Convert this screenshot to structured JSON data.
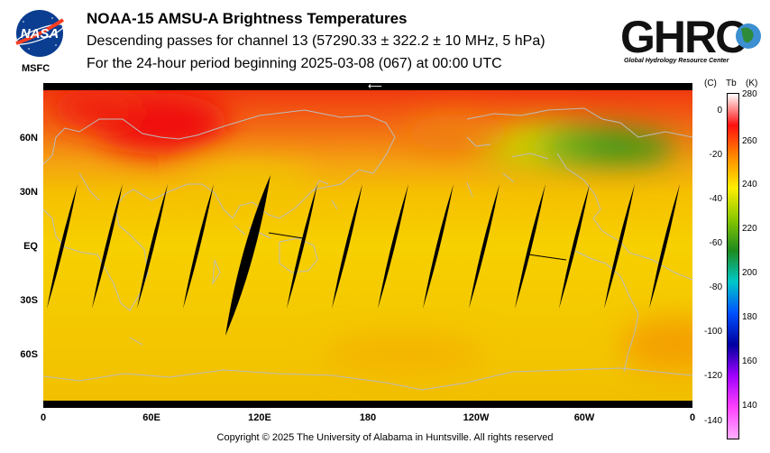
{
  "header": {
    "title": "NOAA-15 AMSU-A Brightness Temperatures",
    "line2": "Descending passes for channel 13 (57290.33 ± 322.2 ± 10 MHz, 5 hPa)",
    "line3": "For the 24-hour period beginning 2025-03-08 (067) at 00:00 UTC"
  },
  "logos": {
    "nasa_text": "NASA",
    "msfc_label": "MSFC",
    "ghrc_text": "GHRC",
    "ghrc_subtitle": "Global Hydrology Resource Center"
  },
  "map": {
    "projection": "equirectangular",
    "lat_labels": [
      "60N",
      "30N",
      "EQ",
      "30S",
      "60S"
    ],
    "lon_labels": [
      "0",
      "60E",
      "120E",
      "180",
      "120W",
      "60W",
      "0"
    ],
    "arrow": "⟵",
    "colors": {
      "ocean_base": "#f6cc00",
      "warm": "#f01414",
      "cool": "#2f9a12",
      "gap": "#000000",
      "coast": "#b8b8b8"
    }
  },
  "colorbar": {
    "celsius_unit": "(C)",
    "tb_label": "Tb",
    "kelvin_unit": "(K)",
    "celsius_ticks": [
      "0",
      "-20",
      "-40",
      "-60",
      "-80",
      "-100",
      "-120",
      "-140"
    ],
    "kelvin_ticks": [
      "280",
      "260",
      "240",
      "220",
      "200",
      "180",
      "160",
      "140"
    ],
    "range_k": [
      133,
      282
    ],
    "gradient": [
      "#ffffff",
      "#ff1010",
      "#ff8a00",
      "#ffee00",
      "#8ac800",
      "#1e8a1e",
      "#00c8c8",
      "#0050ff",
      "#0000a0",
      "#a000ff",
      "#ff40ff",
      "#ffb0ff"
    ]
  },
  "footer": {
    "copyright": "Copyright © 2025 The University of Alabama in Huntsville.  All rights reserved"
  }
}
